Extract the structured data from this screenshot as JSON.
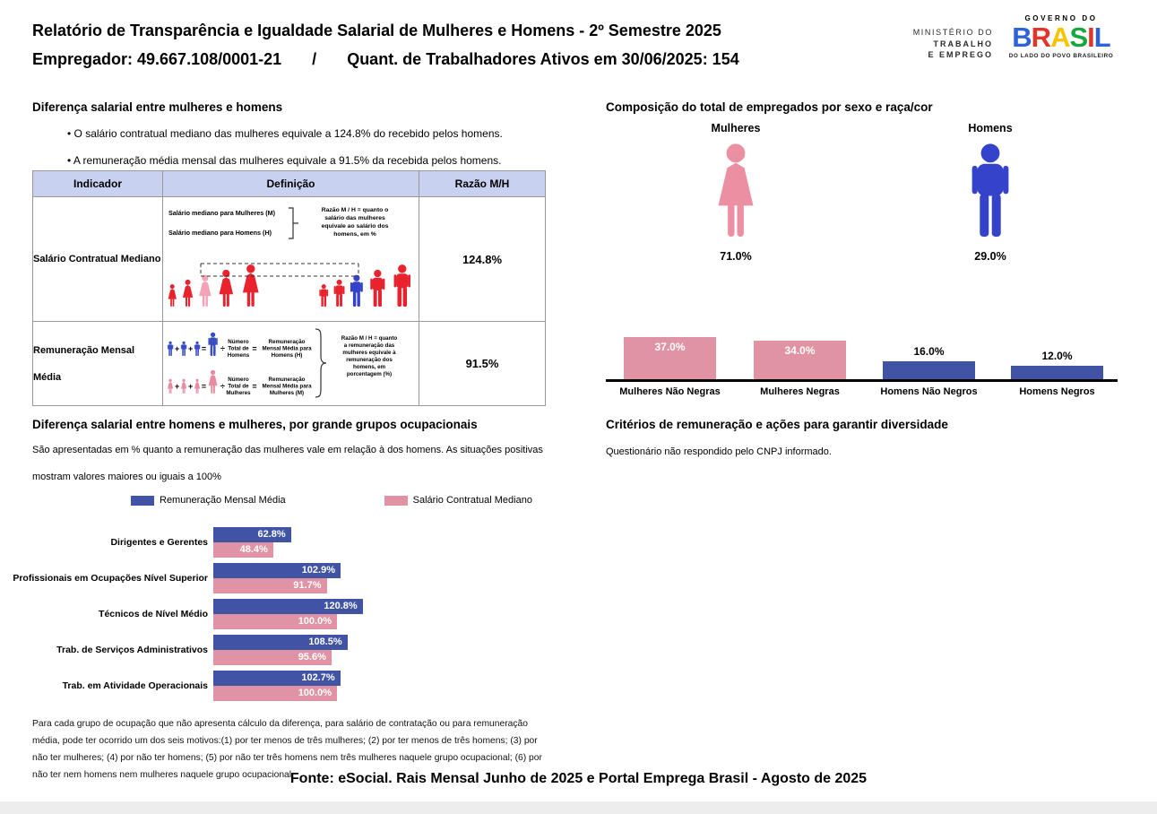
{
  "header": {
    "title": "Relatório de Transparência e Igualdade Salarial de Mulheres e Homens - 2º Semestre 2025",
    "employer": "Empregador: 49.667.108/0001-21",
    "slash": "/",
    "workers": "Quant. de Trabalhadores Ativos em 30/06/2025: 154"
  },
  "logos": {
    "ministry_l1": "MINISTÉRIO DO",
    "ministry_l2": "TRABALHO",
    "ministry_l3": "E EMPREGO",
    "gov_top": "GOVERNO DO",
    "brand_letters": [
      "B",
      "R",
      "A",
      "S",
      "I",
      "L"
    ],
    "brand_colors": [
      "#2d62d9",
      "#e3342a",
      "#f6c400",
      "#18a73c",
      "#e3342a",
      "#2d62d9"
    ],
    "gov_bottom": "DO LADO DO POVO BRASILEIRO"
  },
  "colors": {
    "figure_red": "#e8232e",
    "figure_pink": "#f2a3b8",
    "formula_blue": "#3a4cc4",
    "formula_pink": "#e88ba1",
    "woman_icon_pink": "#ec8fa2",
    "man_icon_blue": "#3443c9",
    "table_header_bg": "#c8d1f0"
  },
  "salary_gap": {
    "heading": "Diferença salarial entre mulheres e homens",
    "bullet1": "• O salário contratual mediano das mulheres equivale a 124.8% do recebido pelos homens.",
    "bullet2": "• A remuneração média mensal das mulheres equivale a 91.5% da recebida pelos homens.",
    "table": {
      "col1": "Indicador",
      "col2": "Definição",
      "col3": "Razão M/H",
      "row1": {
        "indicator": "Salário Contratual Mediano",
        "def_line1": "Salário mediano para Mulheres (M)",
        "def_line2": "Salário mediano para Homens (H)",
        "note_lines": [
          "Razão M / H = quanto o",
          "salário das mulheres",
          "equivale ao salário dos",
          "homens, em %"
        ],
        "ratio": "124.8%"
      },
      "row2": {
        "indicator_l1": "Remuneração Mensal",
        "indicator_l2": "Média",
        "plus": "+",
        "eq": "=",
        "div": "÷",
        "men_divisor": [
          "Número",
          "Total de",
          "Homens"
        ],
        "men_result": [
          "Remuneração",
          "Mensal Média para",
          "Homens (H)"
        ],
        "women_divisor": [
          "Número",
          "Total de",
          "Mulheres"
        ],
        "women_result": [
          "Remuneração",
          "Mensal Média para",
          "Mulheres (M)"
        ],
        "note_lines": [
          "Razão M / H = quanto",
          "a remuneração das",
          "mulheres equivale à",
          "remuneração dos",
          "homens, em",
          "porcentagem (%)"
        ],
        "ratio": "91.5%"
      }
    }
  },
  "composition": {
    "heading": "Composição do total de empregados por sexo e raça/cor"
  },
  "diversity": {
    "heading": "Critérios de remuneração e ações para garantir diversidade",
    "text": "Questionário não respondido pelo CNPJ informado."
  },
  "occupation": {
    "heading": "Diferença salarial entre homens e mulheres, por grande grupos ocupacionais",
    "sub1": "São apresentadas em % quanto a remuneração das mulheres vale em relação à dos homens. As situações positivas",
    "sub2": "mostram valores maiores ou iguais a 100%",
    "footnote": "Para cada grupo de ocupação que não apresenta cálculo da diferença, para salário de contratação ou para remuneração média, pode ter ocorrido um dos seis motivos:(1) por ter menos de três mulheres; (2) por ter menos de três homens; (3) por não ter mulheres; (4) por não ter homens; (5) por não ter três homens nem três mulheres naquele grupo ocupacional; (6) por não ter nem homens nem mulheres naquele grupo ocupacional"
  },
  "footer": {
    "text": "Fonte: eSocial. Rais Mensal Junho de 2025 e Portal Emprega Brasil - Agosto de 2025"
  },
  "chart_data": [
    {
      "type": "bar",
      "title": "Composição do total de empregados por sexo e raça/cor",
      "icon_groups": [
        {
          "label": "Mulheres",
          "value": 71.0
        },
        {
          "label": "Homens",
          "value": 29.0
        }
      ],
      "categories": [
        "Mulheres Não Negras",
        "Mulheres Negras",
        "Homens Não Negros",
        "Homens Negros"
      ],
      "values": [
        37.0,
        34.0,
        16.0,
        12.0
      ],
      "unit": "%",
      "bar_colors": [
        "#e094a3",
        "#e094a3",
        "#4053a4",
        "#4053a4"
      ],
      "ylim": [
        0,
        40
      ],
      "grid": false,
      "value_labels": true
    },
    {
      "type": "bar",
      "orientation": "horizontal",
      "title": "Diferença salarial entre homens e mulheres, por grande grupos ocupacionais",
      "categories": [
        "Dirigentes e Gerentes",
        "Profissionais em Ocupações Nível Superior",
        "Técnicos de Nível Médio",
        "Trab. de Serviços Administrativos",
        "Trab. em Atividade Operacionais"
      ],
      "series": [
        {
          "name": "Remuneração Mensal Média",
          "color": "#4053a4",
          "values": [
            62.8,
            102.9,
            120.8,
            108.5,
            102.7
          ]
        },
        {
          "name": "Salário Contratual Mediano",
          "color": "#e094a3",
          "values": [
            48.4,
            91.7,
            100.0,
            95.6,
            100.0
          ]
        }
      ],
      "unit": "%",
      "xlim": [
        0,
        125
      ],
      "legend_position": "top",
      "value_labels": true
    }
  ]
}
